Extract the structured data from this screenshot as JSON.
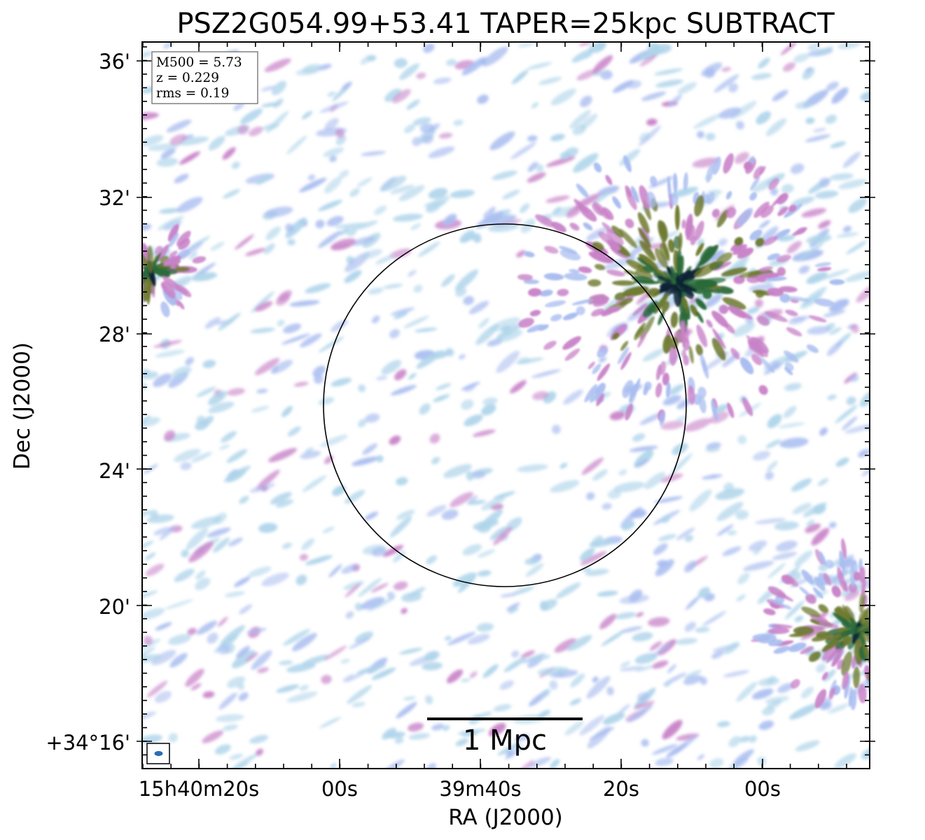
{
  "title": "PSZ2G054.99+53.41 TAPER=25kpc SUBTRACT",
  "info_box": [
    "M500 = 5.73",
    "z = 0.229",
    "rms = 0.19"
  ],
  "x_axis": {
    "label": "RA (J2000)",
    "ticks": [
      "15h40m20s",
      "00s",
      "39m40s",
      "20s",
      "00s"
    ]
  },
  "y_axis": {
    "label": "Dec (J2000)",
    "ticks": [
      "36'",
      "32'",
      "28'",
      "24'",
      "20'",
      "+34°16'"
    ]
  },
  "scale_bar": {
    "label": "1 Mpc"
  },
  "colors": {
    "faint": "#aed4ea",
    "blue": "#a9bdf0",
    "pink": "#c882c8",
    "olive": "#6e7a30",
    "green": "#2a6a3a",
    "dark": "#0a2236",
    "beam": "#2a6fb3"
  }
}
